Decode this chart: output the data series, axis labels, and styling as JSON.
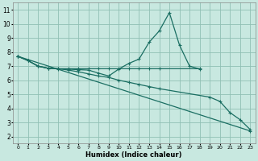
{
  "xlabel": "Humidex (Indice chaleur)",
  "bg_color": "#c8e8e0",
  "grid_color": "#90c0b4",
  "line_color": "#1a6e62",
  "xlim": [
    -0.5,
    23.5
  ],
  "ylim": [
    1.5,
    11.5
  ],
  "xticks": [
    0,
    1,
    2,
    3,
    4,
    5,
    6,
    7,
    8,
    9,
    10,
    11,
    12,
    13,
    14,
    15,
    16,
    17,
    18,
    19,
    20,
    21,
    22,
    23
  ],
  "yticks": [
    2,
    3,
    4,
    5,
    6,
    7,
    8,
    9,
    10,
    11
  ],
  "line1_x": [
    0,
    1,
    2,
    3,
    4,
    5,
    6,
    7,
    8,
    9,
    10,
    11,
    12,
    13,
    14,
    15,
    16,
    17,
    18
  ],
  "line1_y": [
    7.7,
    7.4,
    7.0,
    6.85,
    6.8,
    6.78,
    6.75,
    6.72,
    6.5,
    6.3,
    6.8,
    7.2,
    7.5,
    8.7,
    9.5,
    10.8,
    8.5,
    7.0,
    6.8
  ],
  "line2_x": [
    0,
    1,
    2,
    3,
    4,
    5,
    6,
    7,
    8,
    9,
    10,
    11,
    12,
    13,
    14,
    18
  ],
  "line2_y": [
    7.7,
    7.4,
    7.0,
    6.85,
    6.82,
    6.82,
    6.82,
    6.82,
    6.82,
    6.82,
    6.82,
    6.82,
    6.82,
    6.82,
    6.82,
    6.82
  ],
  "line3_x": [
    0,
    1,
    2,
    3,
    4,
    5,
    6,
    7,
    8,
    9,
    10,
    11,
    12,
    13,
    14,
    19,
    20,
    21,
    22,
    23
  ],
  "line3_y": [
    7.7,
    7.4,
    7.0,
    6.85,
    6.82,
    6.72,
    6.6,
    6.45,
    6.3,
    6.2,
    6.0,
    5.85,
    5.7,
    5.55,
    5.4,
    4.8,
    4.5,
    3.7,
    3.2,
    2.5
  ],
  "line4_x": [
    0,
    23
  ],
  "line4_y": [
    7.7,
    2.4
  ]
}
